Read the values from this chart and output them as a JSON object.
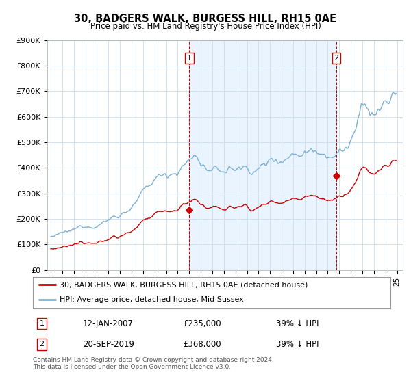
{
  "title": "30, BADGERS WALK, BURGESS HILL, RH15 0AE",
  "subtitle": "Price paid vs. HM Land Registry's House Price Index (HPI)",
  "ylim": [
    0,
    900000
  ],
  "yticks": [
    0,
    100000,
    200000,
    300000,
    400000,
    500000,
    600000,
    700000,
    800000,
    900000
  ],
  "ytick_labels": [
    "£0",
    "£100K",
    "£200K",
    "£300K",
    "£400K",
    "£500K",
    "£600K",
    "£700K",
    "£800K",
    "£900K"
  ],
  "hpi_color": "#7bafd4",
  "hpi_fill_color": "#ddeeff",
  "price_color": "#cc0000",
  "vline_color": "#cc0000",
  "t1_year": 2007.04,
  "t2_year": 2019.72,
  "t1_price": 235000,
  "t2_price": 368000,
  "legend_line1": "30, BADGERS WALK, BURGESS HILL, RH15 0AE (detached house)",
  "legend_line2": "HPI: Average price, detached house, Mid Sussex",
  "transaction1_date": "12-JAN-2007",
  "transaction1_price": "£235,000",
  "transaction1_hpi": "39% ↓ HPI",
  "transaction2_date": "20-SEP-2019",
  "transaction2_price": "£368,000",
  "transaction2_hpi": "39% ↓ HPI",
  "footer": "Contains HM Land Registry data © Crown copyright and database right 2024.\nThis data is licensed under the Open Government Licence v3.0.",
  "background_color": "#ffffff",
  "grid_color": "#ccddee",
  "label1": "1",
  "label2": "2"
}
